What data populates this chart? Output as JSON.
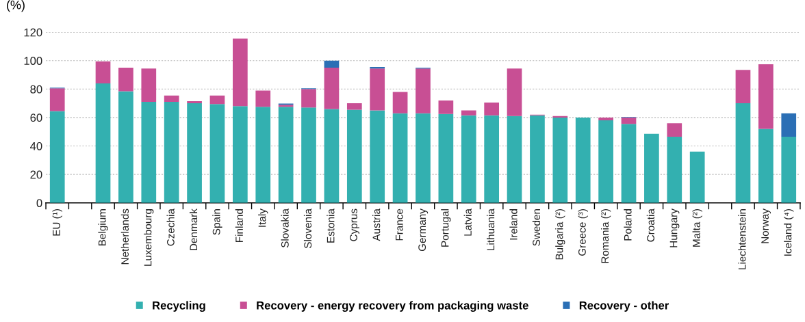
{
  "chart_data": {
    "type": "bar",
    "stacked": true,
    "ylabel": "(%)",
    "categories": [
      "EU (¹)",
      null,
      "Belgium",
      "Netherlands",
      "Luxembourg",
      "Czechia",
      "Denmark",
      "Spain",
      "Finland",
      "Italy",
      "Slovakia",
      "Slovenia",
      "Estonia",
      "Cyprus",
      "Austria",
      "France",
      "Germany",
      "Portugal",
      "Latvia",
      "Lithuania",
      "Ireland",
      "Sweden",
      "Bulgaria (²)",
      "Greece (³)",
      "Romania (²)",
      "Poland",
      "Croatia",
      "Hungary",
      "Malta (²)",
      null,
      "Liechtenstein",
      "Norway",
      "Iceland (⁴)"
    ],
    "series": [
      {
        "name": "Recycling",
        "color": "#33b0b0",
        "values": [
          64.5,
          null,
          84,
          78.5,
          71,
          71,
          70,
          69.5,
          68,
          67.5,
          67.5,
          67,
          66,
          65.5,
          65,
          63,
          63,
          62.5,
          61.5,
          61.5,
          61,
          61.5,
          60,
          60,
          58,
          55.5,
          48.5,
          46.5,
          36,
          null,
          70,
          52,
          46.5
        ]
      },
      {
        "name": "Recovery - energy recovery from packaging waste",
        "color": "#c84f94",
        "values": [
          16,
          null,
          15.5,
          16.5,
          23.5,
          4.5,
          1.5,
          6,
          47.5,
          11.5,
          1.5,
          13,
          29,
          4.5,
          29.5,
          15,
          31.5,
          9.5,
          3.5,
          9,
          33.5,
          0.5,
          1,
          null,
          2,
          4.5,
          null,
          9.5,
          null,
          null,
          23.5,
          45.5,
          null
        ]
      },
      {
        "name": "Recovery - other",
        "color": "#2b6fb5",
        "values": [
          0.5,
          null,
          null,
          null,
          null,
          null,
          null,
          null,
          null,
          null,
          0.8,
          0.5,
          5,
          null,
          1,
          null,
          0.5,
          null,
          null,
          null,
          null,
          null,
          null,
          null,
          null,
          0.3,
          null,
          null,
          null,
          null,
          null,
          null,
          16.5
        ]
      }
    ],
    "ylim": [
      0,
      120
    ],
    "yticks": [
      0,
      20,
      40,
      60,
      80,
      100,
      120
    ],
    "grid": "y",
    "legend": "bottom"
  }
}
